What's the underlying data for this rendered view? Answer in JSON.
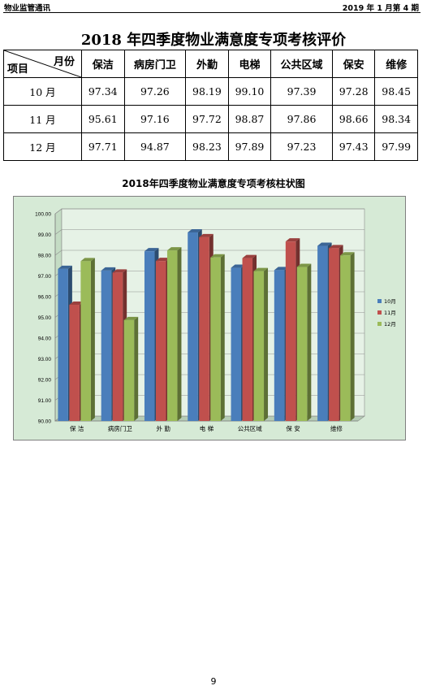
{
  "header": {
    "left": "物业监管通讯",
    "right": "2019 年 1 月第 4 期"
  },
  "title": "2018 年四季度物业满意度专项考核评价",
  "table": {
    "corner_top": "月份",
    "corner_bottom": "项目",
    "columns": [
      "保洁",
      "病房门卫",
      "外勤",
      "电梯",
      "公共区域",
      "保安",
      "维修"
    ],
    "rows": [
      {
        "label": "10 月",
        "values": [
          "97.34",
          "97.26",
          "98.19",
          "99.10",
          "97.39",
          "97.28",
          "98.45"
        ]
      },
      {
        "label": "11 月",
        "values": [
          "95.61",
          "97.16",
          "97.72",
          "98.87",
          "97.86",
          "98.66",
          "98.34"
        ]
      },
      {
        "label": "12 月",
        "values": [
          "97.71",
          "94.87",
          "98.23",
          "97.89",
          "97.23",
          "97.43",
          "97.99"
        ]
      }
    ]
  },
  "chart_title": "2018年四季度物业满意度专项考核柱状图",
  "chart_data": {
    "type": "bar",
    "title": "2018年四季度物业满意度专项考核柱状图",
    "categories": [
      "保 洁",
      "病房门卫",
      "外 勤",
      "电 梯",
      "公共区域",
      "保 安",
      "维修"
    ],
    "series": [
      {
        "name": "10月",
        "color": "#4a7ebb",
        "values": [
          97.34,
          97.26,
          98.19,
          99.1,
          97.39,
          97.28,
          98.45
        ]
      },
      {
        "name": "11月",
        "color": "#c0504d",
        "values": [
          95.61,
          97.16,
          97.72,
          98.87,
          97.86,
          98.66,
          98.34
        ]
      },
      {
        "name": "12月",
        "color": "#9bbb59",
        "values": [
          97.71,
          94.87,
          98.23,
          97.89,
          97.23,
          97.43,
          97.99
        ]
      }
    ],
    "ylim": [
      90,
      100
    ],
    "yticks": [
      "90.00",
      "91.00",
      "92.00",
      "93.00",
      "94.00",
      "95.00",
      "96.00",
      "97.00",
      "98.00",
      "99.00",
      "100.00"
    ],
    "grid": true,
    "legend": "right",
    "background": "#d6ead6"
  },
  "page_number": "9"
}
